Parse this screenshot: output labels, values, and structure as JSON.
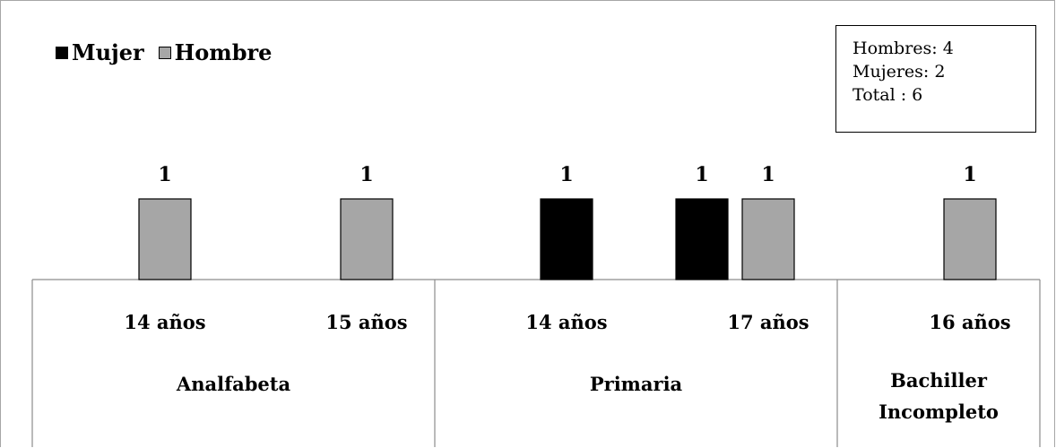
{
  "colors": {
    "mujer": "#000000",
    "hombre": "#a6a6a6",
    "axis": "#8c8c8c"
  },
  "legend": {
    "mujer_label": "Mujer",
    "hombre_label": "Hombre"
  },
  "summary": {
    "line1": "Hombres: 4",
    "line2": "Mujeres: 2",
    "line3": "Total : 6"
  },
  "chart_data": {
    "type": "bar",
    "legend_position": "top-left",
    "grid": false,
    "ylim": [
      0,
      1
    ],
    "categories": [
      {
        "group": "Analfabeta",
        "age": "14 años"
      },
      {
        "group": "Analfabeta",
        "age": "15 años"
      },
      {
        "group": "Primaria",
        "age": "14 años"
      },
      {
        "group": "Primaria",
        "age": "17 años"
      },
      {
        "group": "Bachiller Incompleto",
        "age": "16 años"
      }
    ],
    "groups": [
      "Analfabeta",
      "Primaria",
      "Bachiller Incompleto"
    ],
    "series": [
      {
        "name": "Mujer",
        "values": [
          0,
          0,
          1,
          1,
          0
        ]
      },
      {
        "name": "Hombre",
        "values": [
          1,
          1,
          0,
          1,
          1
        ]
      }
    ],
    "data_labels": [
      "1",
      "1",
      "1",
      "1",
      "1",
      "1"
    ]
  }
}
